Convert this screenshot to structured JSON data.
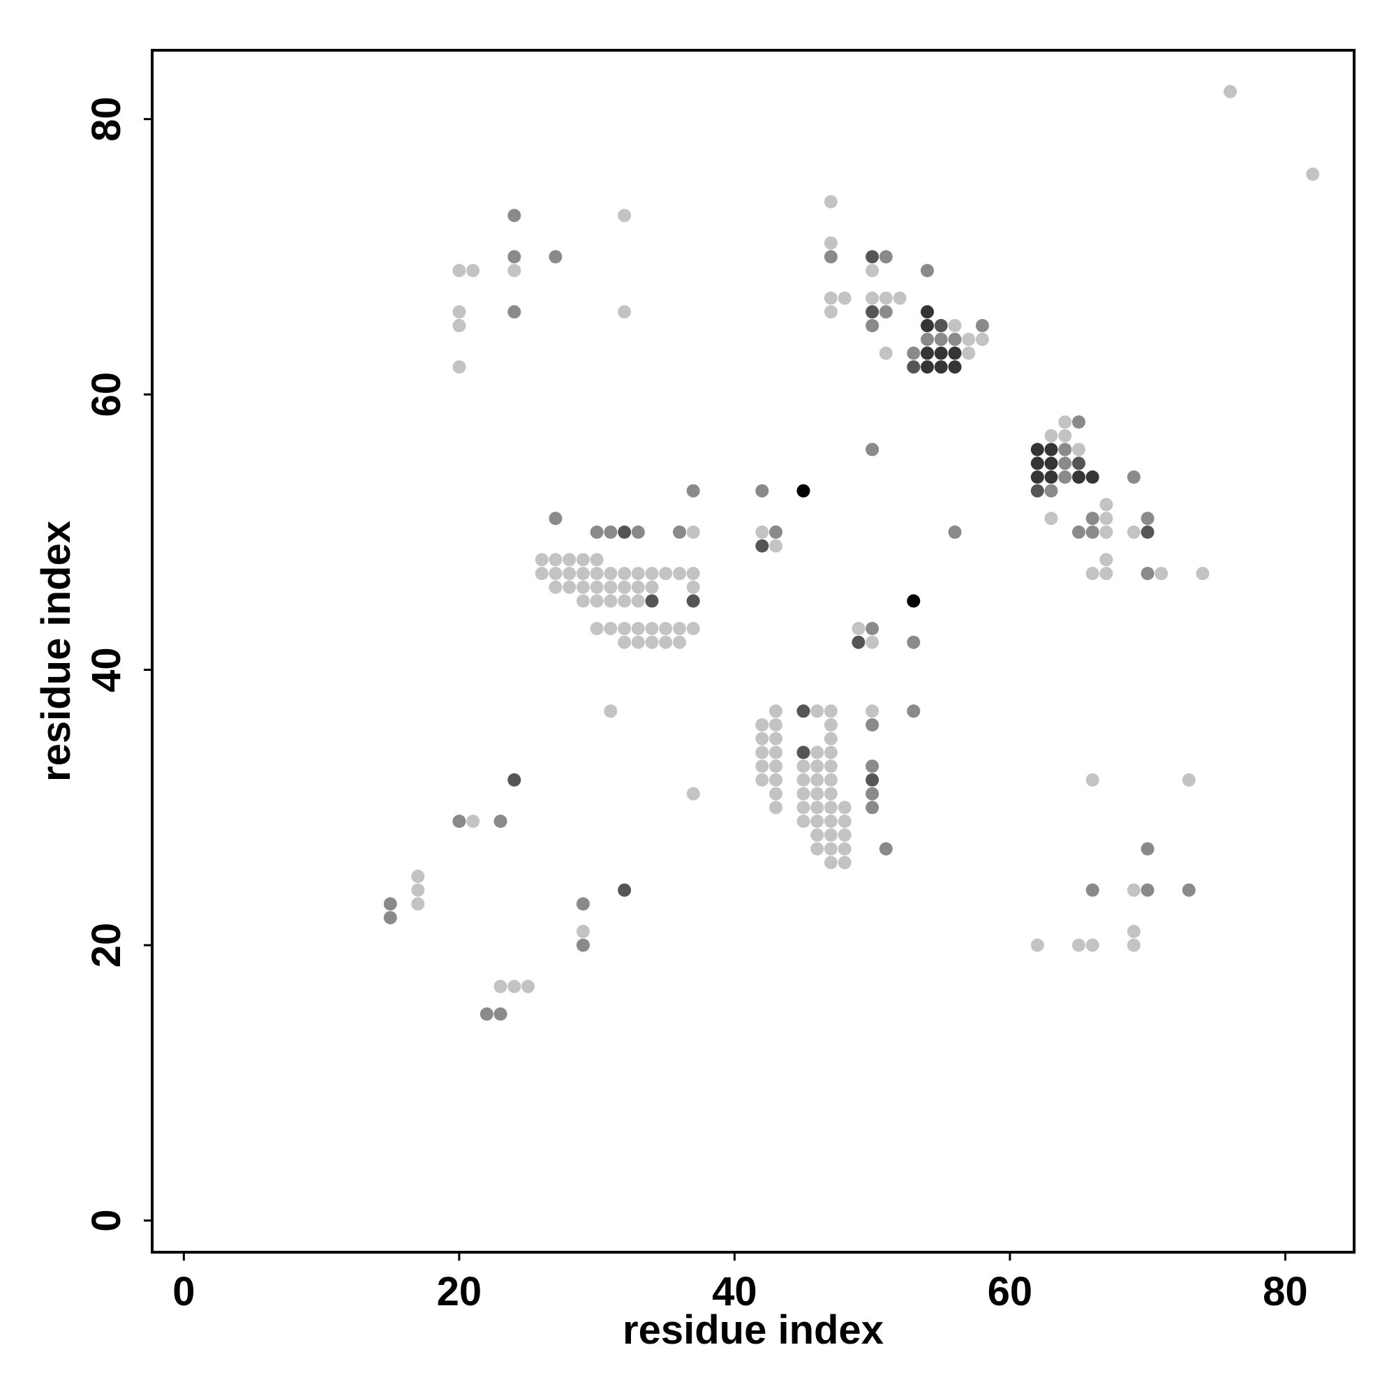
{
  "chart_data": {
    "type": "scatter",
    "title": "",
    "xlabel": "residue index",
    "ylabel": "residue index",
    "xlim": [
      -2.3,
      85
    ],
    "ylim": [
      -2.3,
      85
    ],
    "x_ticks": [
      0,
      20,
      40,
      60,
      80
    ],
    "y_ticks": [
      0,
      20,
      40,
      60,
      80
    ],
    "grid": false,
    "legend": "none",
    "shade_scale": {
      "level_1": "#c3c3c3",
      "level_2": "#8a8a8a",
      "level_3": "#555555",
      "level_4": "#353535",
      "level_5": "#000000"
    },
    "points": [
      [
        76,
        82,
        1
      ],
      [
        82,
        76,
        1
      ],
      [
        24,
        73,
        2
      ],
      [
        32,
        73,
        1
      ],
      [
        47,
        74,
        1
      ],
      [
        24,
        70,
        2
      ],
      [
        27,
        70,
        2
      ],
      [
        47,
        71,
        1
      ],
      [
        47,
        70,
        2
      ],
      [
        50,
        70,
        3
      ],
      [
        51,
        70,
        2
      ],
      [
        20,
        69,
        1
      ],
      [
        21,
        69,
        1
      ],
      [
        24,
        69,
        1
      ],
      [
        50,
        69,
        1
      ],
      [
        54,
        69,
        2
      ],
      [
        47,
        67,
        1
      ],
      [
        48,
        67,
        1
      ],
      [
        50,
        67,
        1
      ],
      [
        51,
        67,
        1
      ],
      [
        52,
        67,
        1
      ],
      [
        20,
        66,
        1
      ],
      [
        24,
        66,
        2
      ],
      [
        32,
        66,
        1
      ],
      [
        47,
        66,
        1
      ],
      [
        50,
        66,
        3
      ],
      [
        51,
        66,
        2
      ],
      [
        54,
        66,
        4
      ],
      [
        20,
        65,
        1
      ],
      [
        50,
        65,
        2
      ],
      [
        54,
        65,
        4
      ],
      [
        55,
        65,
        3
      ],
      [
        56,
        65,
        1
      ],
      [
        58,
        65,
        2
      ],
      [
        54,
        64,
        2
      ],
      [
        55,
        64,
        2
      ],
      [
        56,
        64,
        2
      ],
      [
        57,
        64,
        1
      ],
      [
        58,
        64,
        1
      ],
      [
        51,
        63,
        1
      ],
      [
        53,
        63,
        2
      ],
      [
        54,
        63,
        4
      ],
      [
        55,
        63,
        4
      ],
      [
        56,
        63,
        4
      ],
      [
        57,
        63,
        1
      ],
      [
        20,
        62,
        1
      ],
      [
        53,
        62,
        3
      ],
      [
        54,
        62,
        4
      ],
      [
        55,
        62,
        4
      ],
      [
        56,
        62,
        4
      ],
      [
        64,
        58,
        1
      ],
      [
        65,
        58,
        2
      ],
      [
        63,
        57,
        1
      ],
      [
        64,
        57,
        1
      ],
      [
        50,
        56,
        2
      ],
      [
        62,
        56,
        4
      ],
      [
        63,
        56,
        4
      ],
      [
        64,
        56,
        2
      ],
      [
        65,
        56,
        1
      ],
      [
        62,
        55,
        4
      ],
      [
        63,
        55,
        4
      ],
      [
        64,
        55,
        2
      ],
      [
        65,
        55,
        3
      ],
      [
        62,
        54,
        4
      ],
      [
        63,
        54,
        4
      ],
      [
        64,
        54,
        2
      ],
      [
        65,
        54,
        4
      ],
      [
        66,
        54,
        4
      ],
      [
        69,
        54,
        2
      ],
      [
        37,
        53,
        2
      ],
      [
        42,
        53,
        2
      ],
      [
        45,
        53,
        5
      ],
      [
        62,
        53,
        3
      ],
      [
        63,
        53,
        2
      ],
      [
        67,
        52,
        1
      ],
      [
        27,
        51,
        2
      ],
      [
        63,
        51,
        1
      ],
      [
        66,
        51,
        2
      ],
      [
        67,
        51,
        1
      ],
      [
        70,
        51,
        2
      ],
      [
        30,
        50,
        2
      ],
      [
        31,
        50,
        2
      ],
      [
        32,
        50,
        3
      ],
      [
        33,
        50,
        2
      ],
      [
        36,
        50,
        2
      ],
      [
        37,
        50,
        1
      ],
      [
        42,
        50,
        1
      ],
      [
        43,
        50,
        2
      ],
      [
        56,
        50,
        2
      ],
      [
        65,
        50,
        2
      ],
      [
        66,
        50,
        2
      ],
      [
        67,
        50,
        1
      ],
      [
        69,
        50,
        1
      ],
      [
        70,
        50,
        3
      ],
      [
        42,
        49,
        3
      ],
      [
        43,
        49,
        1
      ],
      [
        26,
        48,
        1
      ],
      [
        27,
        48,
        1
      ],
      [
        28,
        48,
        1
      ],
      [
        29,
        48,
        1
      ],
      [
        30,
        48,
        1
      ],
      [
        67,
        48,
        1
      ],
      [
        26,
        47,
        1
      ],
      [
        27,
        47,
        1
      ],
      [
        28,
        47,
        1
      ],
      [
        29,
        47,
        1
      ],
      [
        30,
        47,
        1
      ],
      [
        31,
        47,
        1
      ],
      [
        32,
        47,
        1
      ],
      [
        33,
        47,
        1
      ],
      [
        34,
        47,
        1
      ],
      [
        35,
        47,
        1
      ],
      [
        36,
        47,
        1
      ],
      [
        37,
        47,
        1
      ],
      [
        66,
        47,
        1
      ],
      [
        67,
        47,
        1
      ],
      [
        70,
        47,
        2
      ],
      [
        71,
        47,
        1
      ],
      [
        74,
        47,
        1
      ],
      [
        27,
        46,
        1
      ],
      [
        28,
        46,
        1
      ],
      [
        29,
        46,
        1
      ],
      [
        30,
        46,
        1
      ],
      [
        31,
        46,
        1
      ],
      [
        32,
        46,
        1
      ],
      [
        33,
        46,
        1
      ],
      [
        34,
        46,
        1
      ],
      [
        37,
        46,
        1
      ],
      [
        29,
        45,
        1
      ],
      [
        30,
        45,
        1
      ],
      [
        31,
        45,
        1
      ],
      [
        32,
        45,
        1
      ],
      [
        33,
        45,
        1
      ],
      [
        34,
        45,
        3
      ],
      [
        37,
        45,
        3
      ],
      [
        53,
        45,
        5
      ],
      [
        30,
        43,
        1
      ],
      [
        31,
        43,
        1
      ],
      [
        32,
        43,
        1
      ],
      [
        33,
        43,
        1
      ],
      [
        34,
        43,
        1
      ],
      [
        35,
        43,
        1
      ],
      [
        36,
        43,
        1
      ],
      [
        37,
        43,
        1
      ],
      [
        49,
        43,
        1
      ],
      [
        50,
        43,
        2
      ],
      [
        32,
        42,
        1
      ],
      [
        33,
        42,
        1
      ],
      [
        34,
        42,
        1
      ],
      [
        35,
        42,
        1
      ],
      [
        36,
        42,
        1
      ],
      [
        49,
        42,
        3
      ],
      [
        50,
        42,
        1
      ],
      [
        53,
        42,
        2
      ],
      [
        31,
        37,
        1
      ],
      [
        43,
        37,
        1
      ],
      [
        45,
        37,
        3
      ],
      [
        46,
        37,
        1
      ],
      [
        47,
        37,
        1
      ],
      [
        50,
        37,
        1
      ],
      [
        53,
        37,
        2
      ],
      [
        42,
        36,
        1
      ],
      [
        43,
        36,
        1
      ],
      [
        47,
        36,
        1
      ],
      [
        50,
        36,
        2
      ],
      [
        42,
        35,
        1
      ],
      [
        43,
        35,
        1
      ],
      [
        47,
        35,
        1
      ],
      [
        42,
        34,
        1
      ],
      [
        43,
        34,
        1
      ],
      [
        45,
        34,
        3
      ],
      [
        46,
        34,
        1
      ],
      [
        47,
        34,
        1
      ],
      [
        42,
        33,
        1
      ],
      [
        43,
        33,
        1
      ],
      [
        45,
        33,
        1
      ],
      [
        46,
        33,
        1
      ],
      [
        47,
        33,
        1
      ],
      [
        50,
        33,
        2
      ],
      [
        24,
        32,
        3
      ],
      [
        42,
        32,
        1
      ],
      [
        43,
        32,
        1
      ],
      [
        45,
        32,
        1
      ],
      [
        46,
        32,
        1
      ],
      [
        47,
        32,
        1
      ],
      [
        50,
        32,
        3
      ],
      [
        66,
        32,
        1
      ],
      [
        73,
        32,
        1
      ],
      [
        37,
        31,
        1
      ],
      [
        43,
        31,
        1
      ],
      [
        45,
        31,
        1
      ],
      [
        46,
        31,
        1
      ],
      [
        47,
        31,
        1
      ],
      [
        50,
        31,
        2
      ],
      [
        43,
        30,
        1
      ],
      [
        45,
        30,
        1
      ],
      [
        46,
        30,
        1
      ],
      [
        47,
        30,
        1
      ],
      [
        48,
        30,
        1
      ],
      [
        50,
        30,
        2
      ],
      [
        20,
        29,
        2
      ],
      [
        21,
        29,
        1
      ],
      [
        23,
        29,
        2
      ],
      [
        45,
        29,
        1
      ],
      [
        46,
        29,
        1
      ],
      [
        47,
        29,
        1
      ],
      [
        48,
        29,
        1
      ],
      [
        46,
        28,
        1
      ],
      [
        47,
        28,
        1
      ],
      [
        48,
        28,
        1
      ],
      [
        46,
        27,
        1
      ],
      [
        47,
        27,
        1
      ],
      [
        48,
        27,
        1
      ],
      [
        51,
        27,
        2
      ],
      [
        70,
        27,
        2
      ],
      [
        47,
        26,
        1
      ],
      [
        48,
        26,
        1
      ],
      [
        17,
        25,
        1
      ],
      [
        17,
        24,
        1
      ],
      [
        32,
        24,
        3
      ],
      [
        66,
        24,
        2
      ],
      [
        69,
        24,
        1
      ],
      [
        70,
        24,
        2
      ],
      [
        73,
        24,
        2
      ],
      [
        15,
        23,
        2
      ],
      [
        17,
        23,
        1
      ],
      [
        29,
        23,
        2
      ],
      [
        15,
        22,
        2
      ],
      [
        29,
        21,
        1
      ],
      [
        69,
        21,
        1
      ],
      [
        29,
        20,
        2
      ],
      [
        62,
        20,
        1
      ],
      [
        65,
        20,
        1
      ],
      [
        66,
        20,
        1
      ],
      [
        69,
        20,
        1
      ],
      [
        23,
        17,
        1
      ],
      [
        24,
        17,
        1
      ],
      [
        25,
        17,
        1
      ],
      [
        22,
        15,
        2
      ],
      [
        23,
        15,
        2
      ]
    ]
  }
}
